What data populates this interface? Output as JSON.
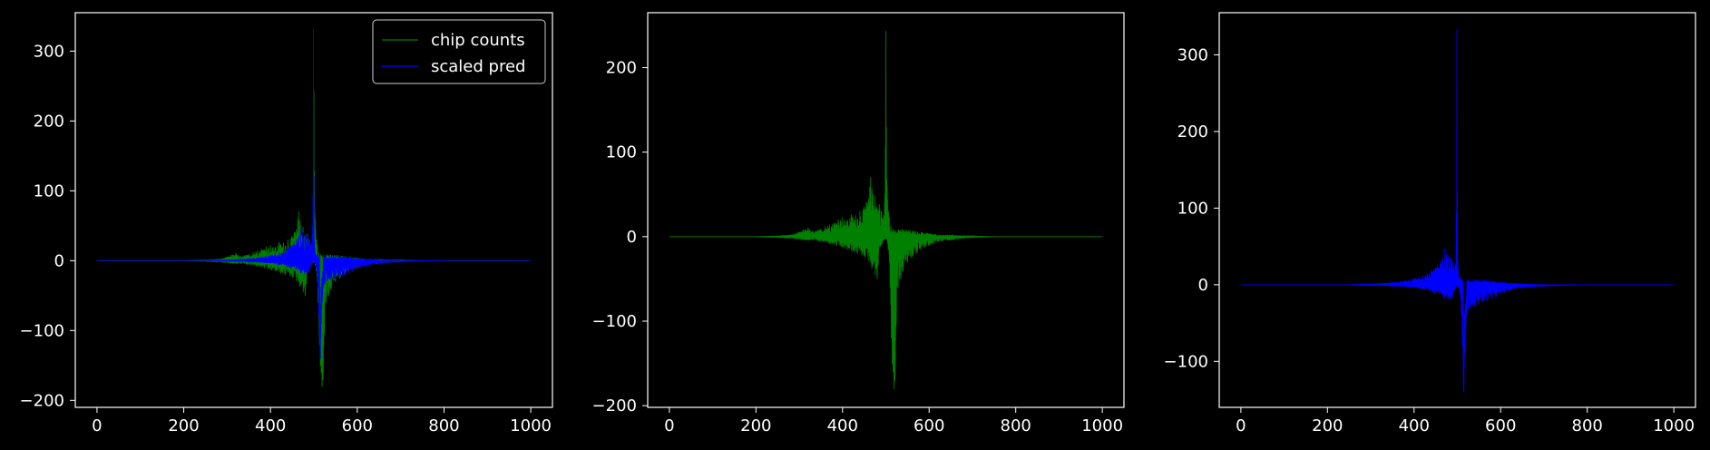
{
  "colors": {
    "background": "#000000",
    "axes": "#ffffff",
    "chip": "#008000",
    "pred": "#0000ff"
  },
  "chart_data": [
    {
      "type": "line",
      "xlim": [
        -50,
        1050
      ],
      "ylim": [
        -210,
        355
      ],
      "xticks": [
        0,
        200,
        400,
        600,
        800,
        1000
      ],
      "yticks": [
        -200,
        -100,
        0,
        100,
        200,
        300
      ],
      "grid": false,
      "legend": {
        "position": "top-right",
        "entries": [
          "chip counts",
          "scaled pred"
        ]
      },
      "series": [
        {
          "name": "chip counts",
          "color": "#008000",
          "source": "chip"
        },
        {
          "name": "scaled pred",
          "color": "#0000ff",
          "source": "pred"
        }
      ]
    },
    {
      "type": "line",
      "xlim": [
        -50,
        1050
      ],
      "ylim": [
        -202,
        265
      ],
      "xticks": [
        0,
        200,
        400,
        600,
        800,
        1000
      ],
      "yticks": [
        -200,
        -100,
        0,
        100,
        200
      ],
      "grid": false,
      "series": [
        {
          "color": "#008000",
          "source": "chip"
        }
      ]
    },
    {
      "type": "line",
      "xlim": [
        -50,
        1050
      ],
      "ylim": [
        -160,
        355
      ],
      "xticks": [
        0,
        200,
        400,
        600,
        800,
        1000
      ],
      "yticks": [
        -100,
        0,
        100,
        200,
        300
      ],
      "grid": false,
      "series": [
        {
          "color": "#0000ff",
          "source": "pred"
        }
      ]
    }
  ],
  "signals": {
    "chip": {
      "x": [
        0,
        100,
        200,
        250,
        280,
        300,
        310,
        320,
        330,
        340,
        350,
        360,
        370,
        380,
        390,
        400,
        410,
        420,
        430,
        440,
        450,
        455,
        460,
        465,
        470,
        475,
        480,
        485,
        490,
        495,
        498,
        500,
        503,
        506,
        510,
        513,
        515,
        517,
        519,
        521,
        524,
        528,
        535,
        540,
        550,
        560,
        570,
        580,
        590,
        600,
        610,
        620,
        630,
        650,
        680,
        700,
        750,
        800,
        900,
        1000
      ],
      "upper": [
        0,
        0,
        0,
        1,
        2,
        5,
        8,
        10,
        6,
        7,
        9,
        12,
        14,
        16,
        20,
        22,
        18,
        26,
        25,
        30,
        35,
        40,
        45,
        70,
        50,
        48,
        42,
        38,
        30,
        25,
        50,
        243,
        60,
        30,
        18,
        15,
        12,
        10,
        12,
        14,
        12,
        10,
        9,
        8,
        8,
        7,
        6,
        6,
        5,
        4,
        3,
        2,
        2,
        2,
        1,
        1,
        0,
        0,
        0,
        0
      ],
      "lower": [
        0,
        0,
        0,
        -1,
        -2,
        -3,
        -4,
        -5,
        -4,
        -5,
        -6,
        -7,
        -8,
        -10,
        -12,
        -14,
        -16,
        -18,
        -20,
        -22,
        -24,
        -26,
        -30,
        -35,
        -40,
        -45,
        -50,
        -20,
        -10,
        -5,
        -3,
        -2,
        -5,
        -20,
        -60,
        -120,
        -150,
        -160,
        -180,
        -170,
        -100,
        -60,
        -50,
        -40,
        -30,
        -25,
        -20,
        -15,
        -12,
        -10,
        -8,
        -6,
        -5,
        -4,
        -2,
        -1,
        0,
        0,
        0,
        0
      ]
    },
    "pred": {
      "x": [
        0,
        100,
        200,
        250,
        300,
        330,
        350,
        370,
        380,
        390,
        400,
        410,
        420,
        430,
        440,
        450,
        460,
        465,
        470,
        475,
        480,
        485,
        490,
        495,
        497,
        499,
        500,
        501,
        503,
        506,
        510,
        512,
        514,
        515,
        516,
        517,
        518,
        519,
        520,
        521,
        523,
        526,
        530,
        540,
        550,
        560,
        570,
        580,
        590,
        600,
        610,
        620,
        630,
        650,
        700,
        750,
        800,
        900,
        1000
      ],
      "upper": [
        0,
        0,
        0,
        0,
        1,
        2,
        3,
        4,
        5,
        6,
        8,
        10,
        12,
        15,
        18,
        22,
        30,
        35,
        48,
        40,
        38,
        35,
        30,
        25,
        50,
        334,
        120,
        30,
        12,
        10,
        10,
        10,
        9,
        9,
        9,
        8,
        8,
        8,
        8,
        8,
        8,
        8,
        7,
        7,
        6,
        6,
        5,
        5,
        4,
        3,
        3,
        2,
        2,
        1,
        0,
        0,
        0,
        0,
        0
      ],
      "lower": [
        0,
        0,
        0,
        0,
        -1,
        -1,
        -2,
        -2,
        -3,
        -3,
        -4,
        -5,
        -6,
        -8,
        -10,
        -12,
        -14,
        -16,
        -18,
        -20,
        -22,
        -25,
        -12,
        -5,
        -3,
        -2,
        -2,
        -3,
        -5,
        -12,
        -40,
        -80,
        -130,
        -140,
        -110,
        -90,
        -70,
        -60,
        -50,
        -40,
        -35,
        -32,
        -30,
        -28,
        -25,
        -22,
        -20,
        -18,
        -15,
        -12,
        -10,
        -8,
        -6,
        -4,
        -2,
        -1,
        0,
        0,
        0
      ]
    }
  }
}
